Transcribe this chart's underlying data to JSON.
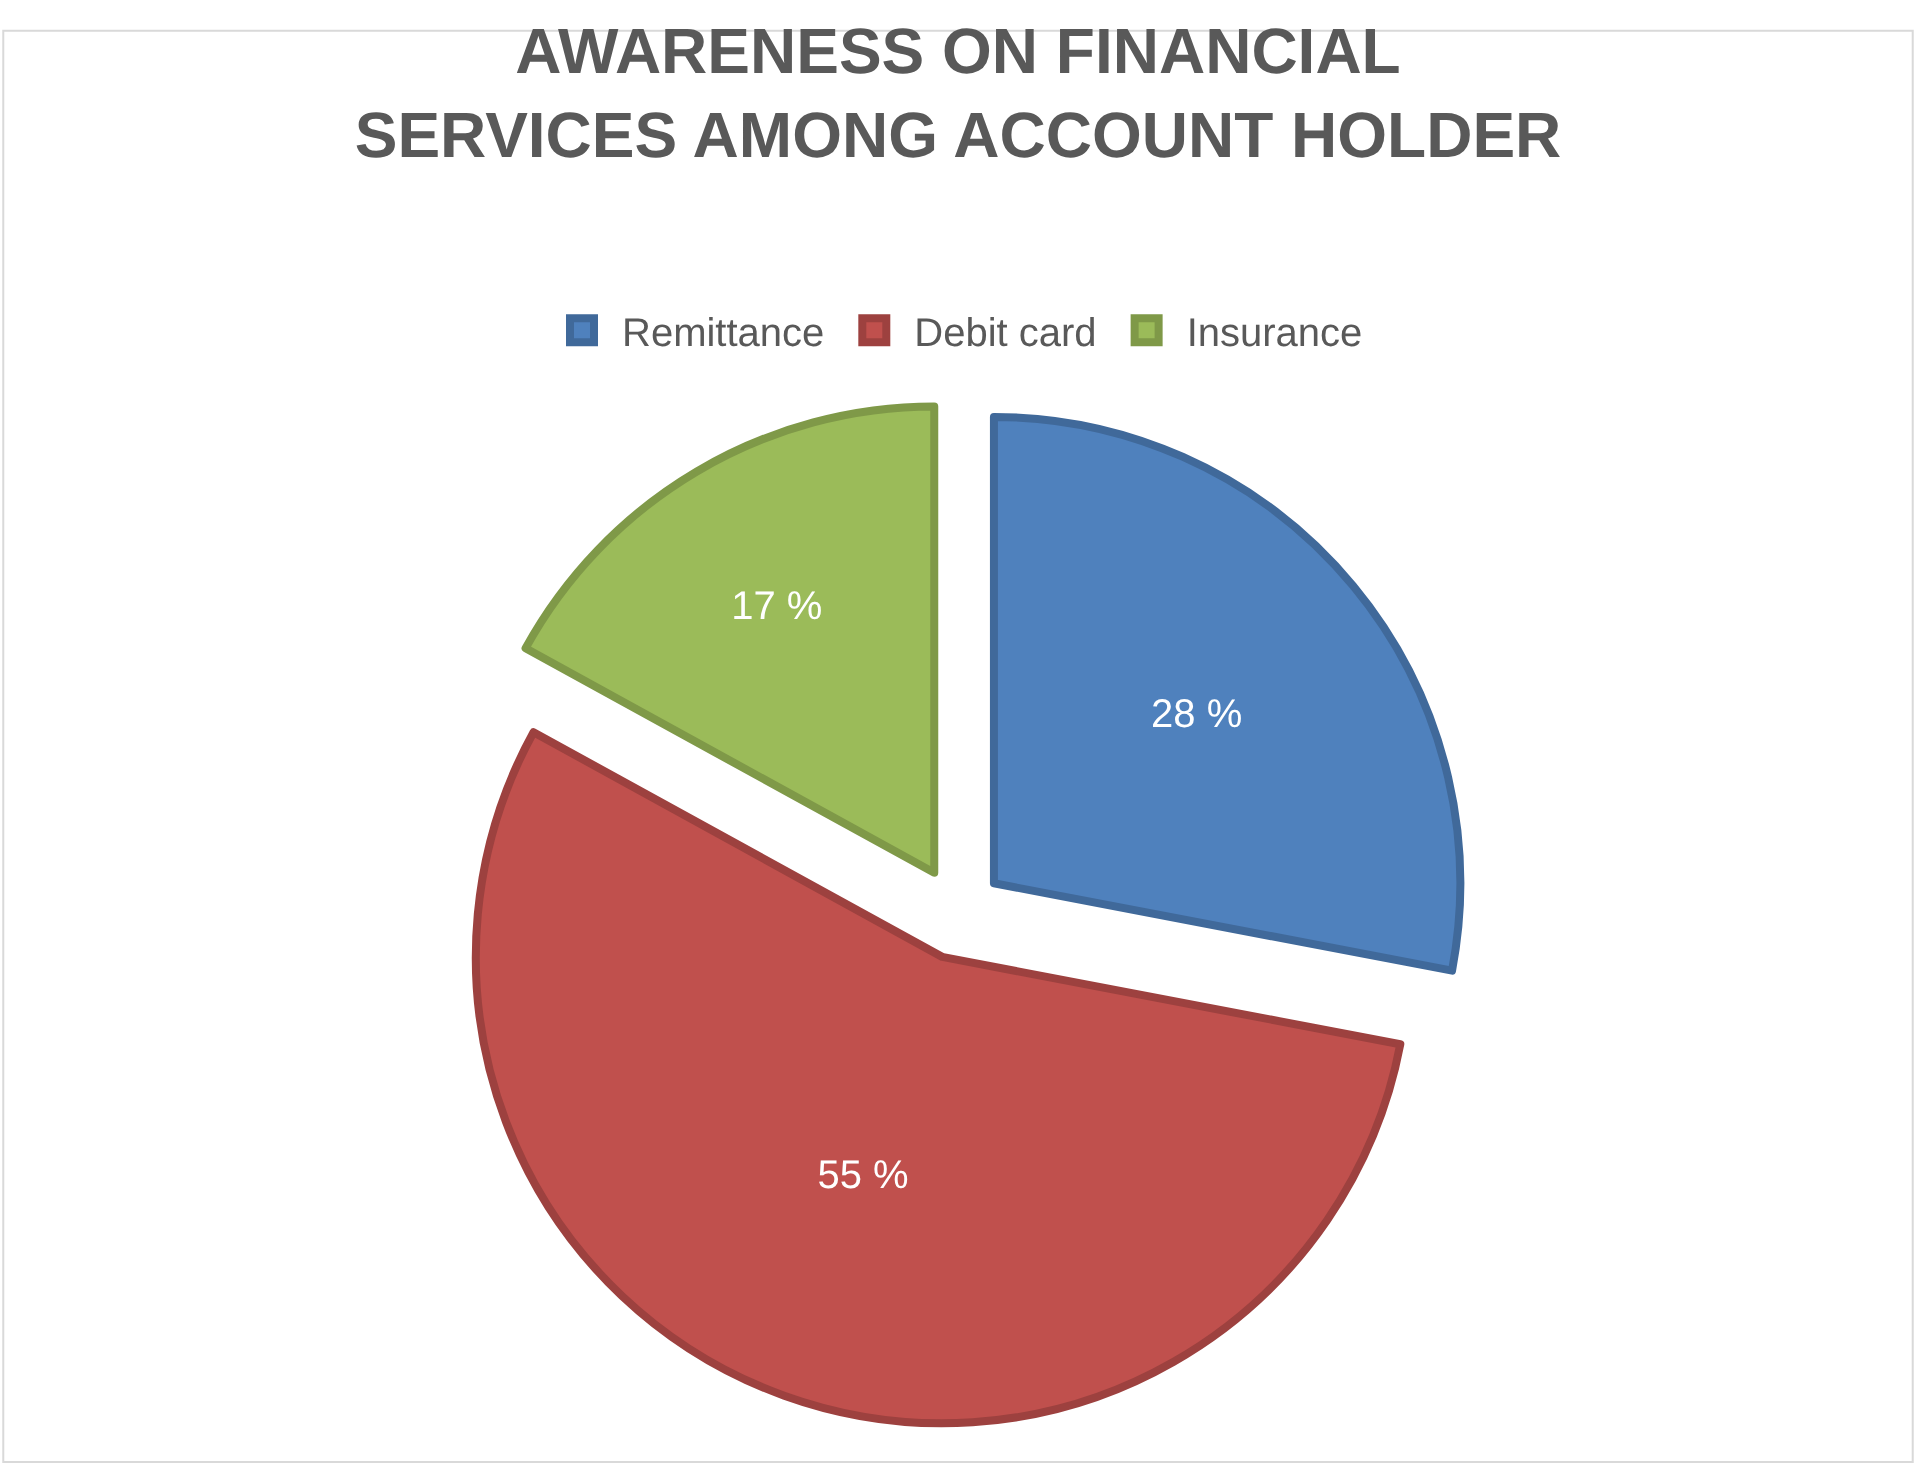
{
  "chart_data": {
    "type": "pie",
    "title": "AWARENESS ON FINANCIAL\nSERVICES AMONG ACCOUNT HOLDER",
    "categories": [
      "Remittance",
      "Debit card",
      "Insurance"
    ],
    "values": [
      28,
      55,
      17
    ],
    "colors": [
      "#4f81bd",
      "#c0504d",
      "#9bbb59"
    ],
    "value_labels": [
      "28 %",
      "55 %",
      "17 %"
    ],
    "legend": "top"
  }
}
